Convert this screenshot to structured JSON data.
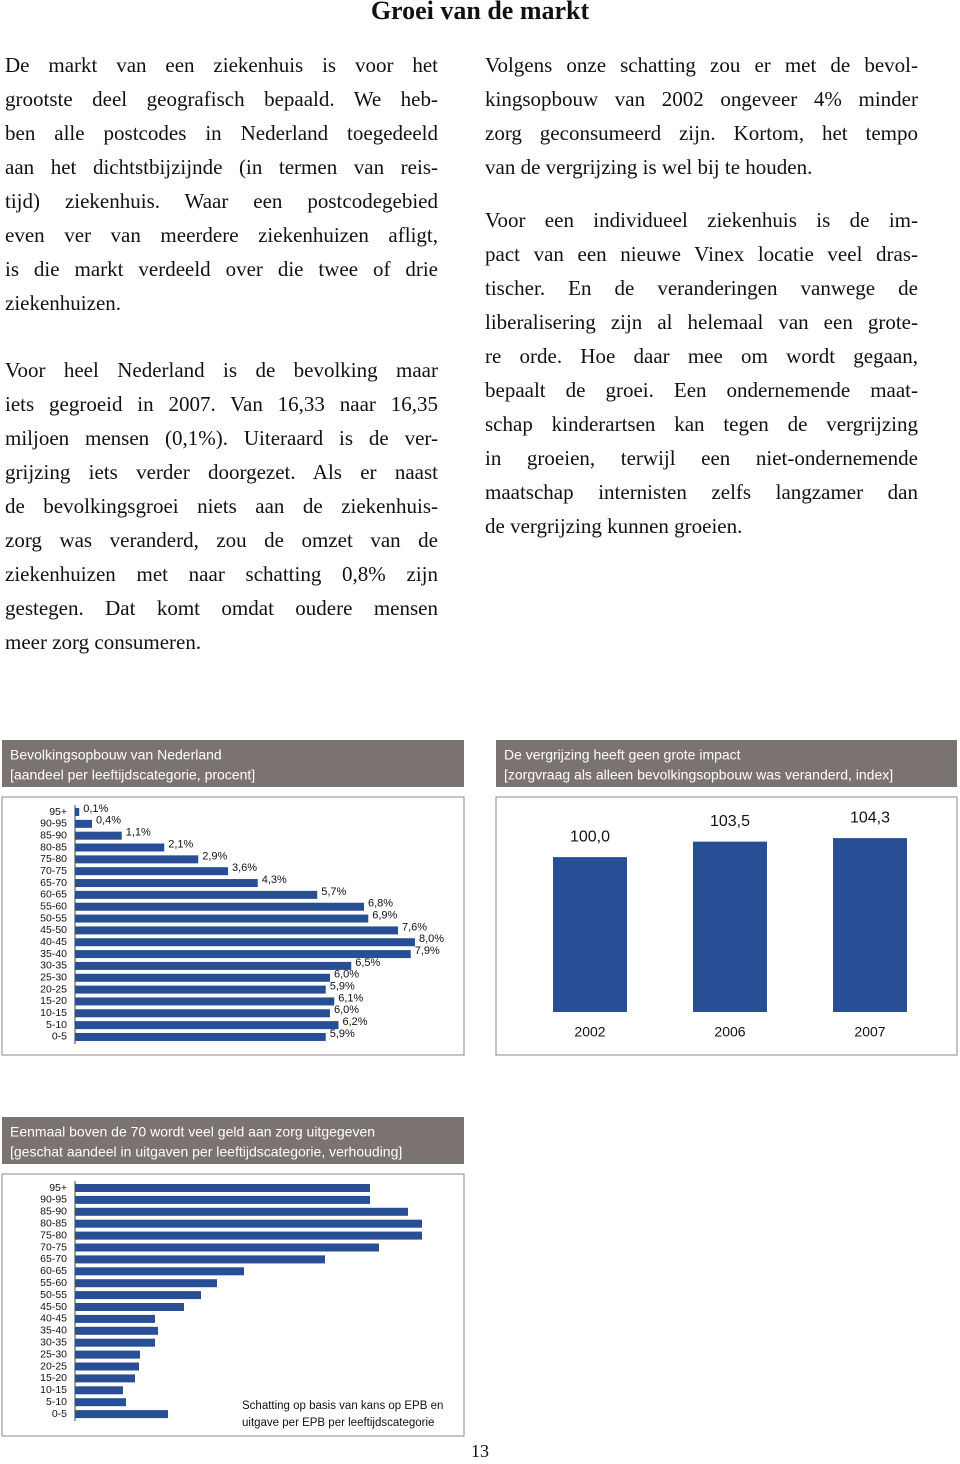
{
  "header": {
    "title": "Groei van de markt"
  },
  "columns": [
    [
      [
        "De markt van een ziekenhuis is voor het",
        "grootste deel geografisch bepaald. We heb-",
        "ben alle postcodes in Nederland toegedeeld",
        "aan het dichtstbijzijnde (in termen van reis-",
        "tijd) ziekenhuis. Waar een postcodegebied",
        "even ver  van meerdere ziekenhuizen afligt,",
        "is die markt verdeeld over die twee of drie",
        "ziekenhuizen."
      ],
      [
        "Voor heel Nederland is de bevolking maar",
        "iets gegroeid in 2007. Van 16,33 naar 16,35",
        "miljoen mensen (0,1%). Uiteraard is de ver-",
        "grijzing iets verder doorgezet. Als er naast",
        "de bevolkingsgroei niets aan de ziekenhuis-",
        "zorg was veranderd,  zou de omzet van de",
        "ziekenhuizen met naar schatting 0,8% zijn",
        "gestegen. Dat komt omdat oudere mensen",
        "meer zorg consumeren."
      ]
    ],
    [
      [
        "Volgens onze schatting zou er met de bevol-",
        "kingsopbouw van 2002 ongeveer 4% minder",
        "zorg geconsumeerd zijn. Kortom, het tempo",
        "van de vergrijzing is wel bij te houden."
      ],
      [
        "Voor een individueel ziekenhuis is de im-",
        "pact van een nieuwe Vinex locatie veel dras-",
        "tischer. En de veranderingen vanwege de",
        "liberalisering zijn al helemaal van een grote-",
        "re orde. Hoe daar mee om wordt gegaan,",
        "bepaalt de groei. Een ondernemende maat-",
        "schap kinderartsen kan tegen de vergrijzing",
        "in groeien, terwijl een niet-ondernemende",
        "maatschap internisten zelfs langzamer dan",
        "de vergrijzing kunnen groeien."
      ]
    ]
  ],
  "chart_data": [
    {
      "type": "bar",
      "orientation": "horizontal",
      "title": "Bevolkingsopbouw van Nederland",
      "subtitle": "[aandeel per leeftijdscategorie, procent]",
      "categories": [
        "95+",
        "90-95",
        "85-90",
        "80-85",
        "75-80",
        "70-75",
        "65-70",
        "60-65",
        "55-60",
        "50-55",
        "45-50",
        "40-45",
        "35-40",
        "30-35",
        "25-30",
        "20-25",
        "15-20",
        "10-15",
        "5-10",
        "0-5"
      ],
      "values": [
        0.1,
        0.4,
        1.1,
        2.1,
        2.9,
        3.6,
        4.3,
        5.7,
        6.8,
        6.9,
        7.6,
        8.0,
        7.9,
        6.5,
        6.0,
        5.9,
        6.1,
        6.0,
        6.2,
        5.9
      ],
      "value_labels": [
        "0,1%",
        "0,4%",
        "1,1%",
        "2,1%",
        "2,9%",
        "3,6%",
        "4,3%",
        "5,7%",
        "6,8%",
        "6,9%",
        "7,6%",
        "8,0%",
        "7,9%",
        "6,5%",
        "6,0%",
        "5,9%",
        "6,1%",
        "6,0%",
        "6,2%",
        "5,9%"
      ],
      "color": "#284f96",
      "xlim": [
        0,
        8
      ]
    },
    {
      "type": "bar",
      "title": "De vergrijzing heeft geen grote impact",
      "subtitle": "[zorgvraag als alleen bevolkingsopbouw was veranderd, index]",
      "categories": [
        "2002",
        "2006",
        "2007"
      ],
      "values": [
        100.0,
        103.5,
        104.3
      ],
      "value_labels": [
        "100,0",
        "103,5",
        "104,3"
      ],
      "color": "#284f96",
      "ylim": [
        65,
        105
      ]
    },
    {
      "type": "bar",
      "orientation": "horizontal",
      "title": "Eenmaal boven de 70 wordt veel geld aan zorg uitgegeven",
      "subtitle": "[geschat aandeel in uitgaven per leeftijdscategorie, verhouding]",
      "categories": [
        "95+",
        "90-95",
        "85-90",
        "80-85",
        "75-80",
        "70-75",
        "65-70",
        "60-65",
        "55-60",
        "50-55",
        "45-50",
        "40-45",
        "35-40",
        "30-35",
        "25-30",
        "20-25",
        "15-20",
        "10-15",
        "5-10",
        "0-5"
      ],
      "values": [
        2.95,
        2.95,
        3.33,
        3.47,
        3.47,
        3.04,
        2.5,
        1.69,
        1.42,
        1.26,
        1.09,
        0.8,
        0.83,
        0.8,
        0.65,
        0.64,
        0.6,
        0.48,
        0.51,
        0.93
      ],
      "color": "#284f96",
      "xlim": [
        0,
        3.47
      ],
      "annotation": [
        "Schatting op basis van kans op EPB en",
        "uitgave per EPB per leeftijdscategorie"
      ]
    }
  ],
  "page_number": "13"
}
